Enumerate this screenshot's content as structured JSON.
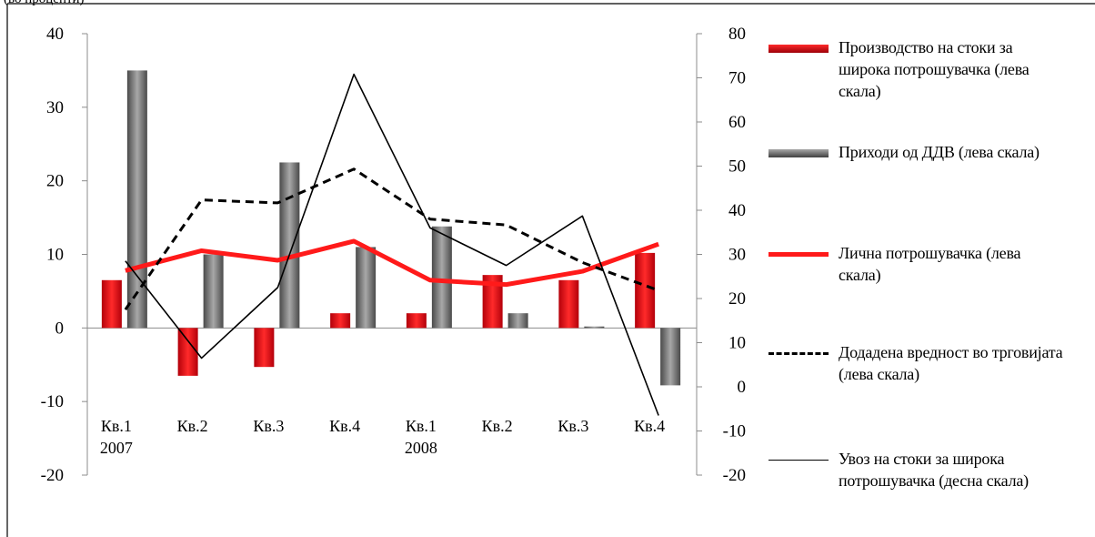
{
  "caption": "(во проценти)",
  "chart_data": {
    "type": "bar",
    "categories": [
      [
        "Кв.1",
        "2007"
      ],
      [
        "Кв.2"
      ],
      [
        "Кв.3"
      ],
      [
        "Кв.4"
      ],
      [
        "Кв.1",
        "2008"
      ],
      [
        "Кв.2"
      ],
      [
        "Кв.3"
      ],
      [
        "Кв.4"
      ]
    ],
    "left_axis": {
      "ylim": [
        -20,
        40
      ],
      "ticks": [
        -20,
        -10,
        0,
        10,
        20,
        30,
        40
      ]
    },
    "right_axis": {
      "ylim": [
        -20,
        80
      ],
      "ticks": [
        -20,
        -10,
        0,
        10,
        20,
        30,
        40,
        50,
        60,
        70,
        80
      ]
    },
    "series": [
      {
        "name": "Производство на стоки за широка потрошувачка (лева скала)",
        "kind": "bar",
        "axis": "left",
        "color": "#e8141b",
        "values": [
          6.5,
          -6.5,
          -5.3,
          2.0,
          2.0,
          7.2,
          6.5,
          10.2
        ]
      },
      {
        "name": "Приходи од ДДВ (лева скала)",
        "kind": "bar",
        "axis": "left",
        "color": "#7a7a7a",
        "values": [
          35.0,
          10.0,
          22.5,
          11.0,
          13.8,
          2.0,
          0.2,
          -7.8
        ]
      },
      {
        "name": "Лична потрошувачка (лева скала)",
        "kind": "line",
        "axis": "left",
        "color": "#ff1a1a",
        "style": "solid-thick",
        "values": [
          7.8,
          10.5,
          9.2,
          11.8,
          6.5,
          5.9,
          7.7,
          11.4
        ]
      },
      {
        "name": "Додадена вредност во трговијата (лева скала)",
        "kind": "line",
        "axis": "left",
        "color": "#000000",
        "style": "dashed",
        "values": [
          2.5,
          17.4,
          17.0,
          21.6,
          14.8,
          14.0,
          8.9,
          5.1
        ]
      },
      {
        "name": "Увоз на стоки за широка потрошувачка (десна скала)",
        "kind": "line",
        "axis": "right",
        "color": "#000000",
        "style": "solid-thin",
        "values": [
          28.5,
          6.5,
          22.5,
          70.8,
          36.0,
          27.5,
          38.7,
          -6.5
        ]
      }
    ],
    "legend_position": "right",
    "grid": false
  }
}
